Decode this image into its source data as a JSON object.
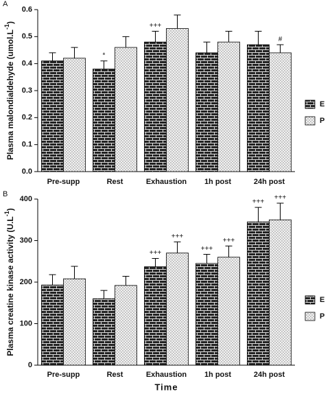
{
  "chart_data": [
    {
      "type": "bar",
      "panel": "A",
      "ylabel": "Plasma malondialdehyde (umol.L",
      "ylabel_sup": "-1",
      "ylabel_end": ")",
      "categories": [
        "Pre-supp",
        "Rest",
        "Exhaustion",
        "1h post",
        "24h post"
      ],
      "series": [
        {
          "name": "E",
          "color": "#222222",
          "pattern": "brick",
          "values": [
            0.41,
            0.38,
            0.48,
            0.44,
            0.47
          ],
          "errors": [
            0.03,
            0.03,
            0.04,
            0.04,
            0.05
          ],
          "markers": [
            null,
            "*",
            "+++",
            null,
            null
          ]
        },
        {
          "name": "P",
          "color": "#f2f2f2",
          "pattern": "dots",
          "values": [
            0.42,
            0.46,
            0.53,
            0.48,
            0.44
          ],
          "errors": [
            0.04,
            0.04,
            0.05,
            0.04,
            0.03
          ],
          "markers": [
            null,
            null,
            null,
            null,
            "#"
          ]
        }
      ],
      "ylim": [
        0,
        0.6
      ],
      "yticks": [
        {
          "value": 0,
          "label": "0.0"
        },
        0.1,
        0.2,
        0.3,
        0.4,
        0.5,
        0.6
      ]
    },
    {
      "type": "bar",
      "panel": "B",
      "ylabel": "Plasma creatine kinase activity (U.L",
      "ylabel_sup": "-1",
      "ylabel_end": ")",
      "xlabel": "Time",
      "categories": [
        "Pre-supp",
        "Rest",
        "Exhaustion",
        "1h post",
        "24h post"
      ],
      "series": [
        {
          "name": "E",
          "color": "#222222",
          "pattern": "brick",
          "values": [
            193,
            160,
            237,
            245,
            345
          ],
          "errors": [
            25,
            20,
            20,
            22,
            35
          ],
          "markers": [
            null,
            null,
            "+++",
            "+++",
            "+++"
          ]
        },
        {
          "name": "P",
          "color": "#f2f2f2",
          "pattern": "dots",
          "values": [
            208,
            192,
            270,
            260,
            350
          ],
          "errors": [
            30,
            22,
            27,
            27,
            40
          ],
          "markers": [
            null,
            null,
            "+++",
            "+++",
            "+++"
          ]
        }
      ],
      "ylim": [
        0,
        400
      ],
      "yticks": [
        0,
        100,
        200,
        300,
        400
      ]
    }
  ]
}
